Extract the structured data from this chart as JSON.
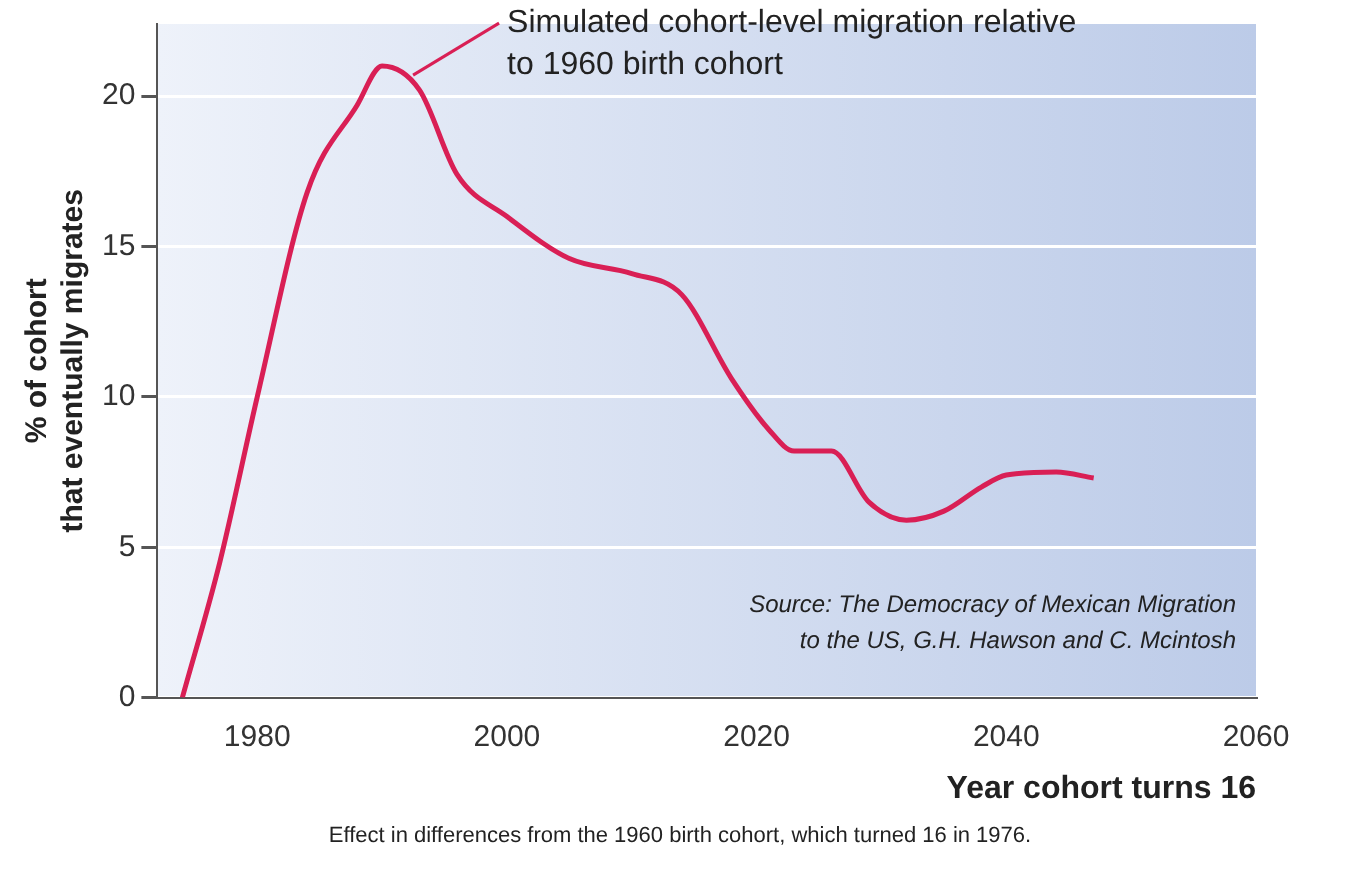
{
  "chart_data": {
    "type": "line",
    "xlabel": "Year cohort turns 16",
    "ylabel": "% of cohort that eventually migrates",
    "x": [
      1974,
      1977,
      1980,
      1984,
      1988,
      1990,
      1993,
      1996,
      2000,
      2005,
      2010,
      2014,
      2018,
      2021,
      2023,
      2026,
      2029,
      2032,
      2035,
      2038,
      2040,
      2044,
      2047
    ],
    "series": [
      {
        "color": "#d91f55",
        "values": [
          0,
          4.5,
          10,
          16.8,
          19.7,
          21,
          20.2,
          17.4,
          16,
          14.6,
          14.1,
          13.4,
          10.6,
          8.9,
          8.2,
          8.2,
          6.5,
          5.9,
          6.2,
          7,
          7.4,
          7.5,
          7.3
        ]
      }
    ],
    "xlim": [
      1972,
      2060
    ],
    "xticks": [
      1980,
      2000,
      2020,
      2040,
      2060
    ],
    "ylim": [
      0,
      22.4
    ],
    "yticks": [
      0,
      5,
      10,
      15,
      20
    ],
    "grid": "y",
    "legend": false,
    "marker": "none",
    "line_style": "solid",
    "annotations": [
      {
        "text": "Simulated cohort-level migration relative to 1960 birth cohort",
        "x": 1992,
        "y": 20.7
      },
      "Source: The Democracy of Mexican Migration to the US, G.H. Hawson and C. Mcintosh",
      "Effect in differences from the 1960 birth cohort, which turned 16 in 1976."
    ]
  }
}
